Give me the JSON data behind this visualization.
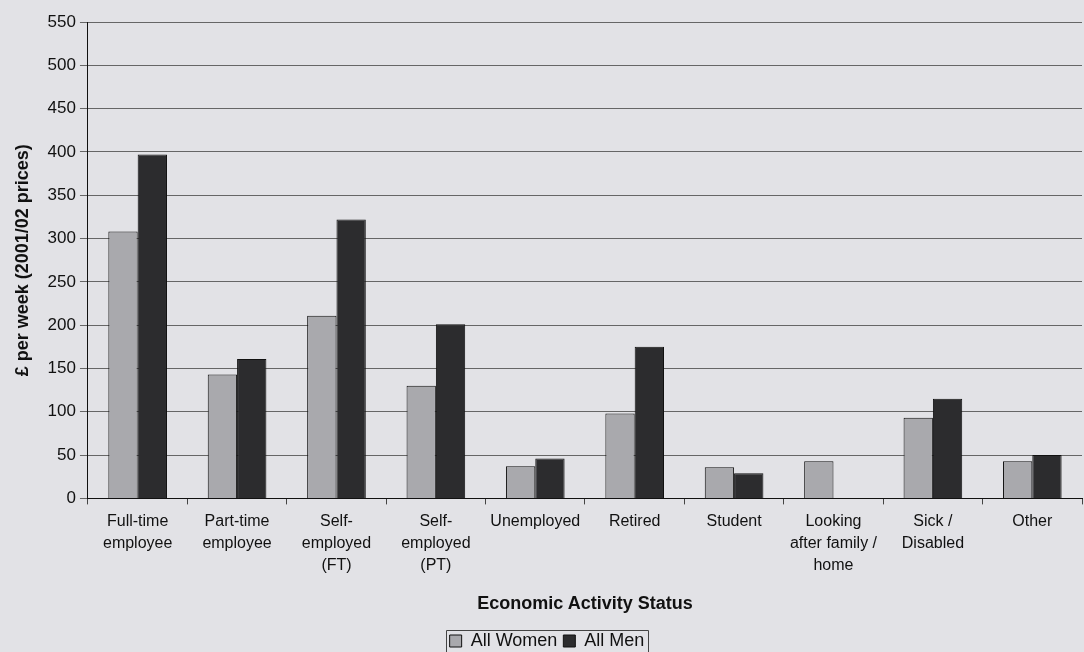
{
  "chart_data": {
    "type": "bar",
    "xlabel": "Economic Activity Status",
    "ylabel": "£ per week (2001/02 prices)",
    "categories": [
      "Full-time employee",
      "Part-time employee",
      "Self-employed (FT)",
      "Self-employed (PT)",
      "Unemployed",
      "Retired",
      "Student",
      "Looking after family / home",
      "Sick / Disabled",
      "Other"
    ],
    "series": [
      {
        "name": "All Women",
        "color": "#a9a9ad",
        "values": [
          308,
          143,
          211,
          130,
          37,
          98,
          36,
          43,
          93,
          43
        ]
      },
      {
        "name": "All Men",
        "color": "#2c2c2e",
        "values": [
          397,
          161,
          322,
          201,
          46,
          175,
          29,
          null,
          115,
          50
        ]
      }
    ],
    "ylim": [
      0,
      550
    ],
    "yticks": [
      0,
      50,
      100,
      150,
      200,
      250,
      300,
      350,
      400,
      450,
      500,
      550
    ],
    "grid": "y",
    "legend": "bottom"
  }
}
